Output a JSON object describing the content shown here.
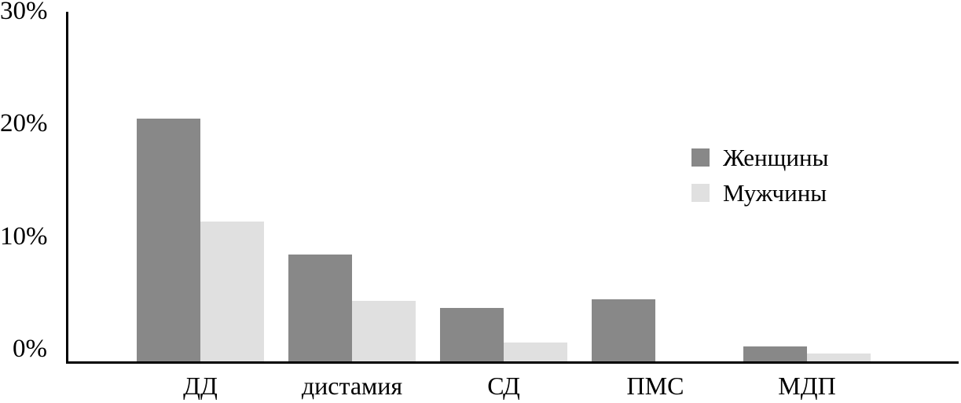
{
  "chart_data": {
    "type": "bar",
    "title": "",
    "categories": [
      "ДД",
      "дистамия",
      "СД",
      "ПМС",
      "МДП"
    ],
    "series": [
      {
        "name": "Женщины",
        "color": "#888888",
        "values": [
          20.8,
          9.2,
          4.6,
          5.3,
          1.3
        ]
      },
      {
        "name": "Мужчины",
        "color": "#E0E0E0",
        "values": [
          12.0,
          5.2,
          1.6,
          0,
          0.7
        ]
      }
    ],
    "unit": "%",
    "yticks": [
      0,
      10,
      20,
      30
    ],
    "ytick_labels": [
      "0%",
      "10%",
      "20%",
      "30%"
    ],
    "ylim": [
      0,
      30
    ],
    "grid": false,
    "legend_position": "inside-upper-right",
    "axis_color": "#000000",
    "background": "#FFFFFF"
  }
}
